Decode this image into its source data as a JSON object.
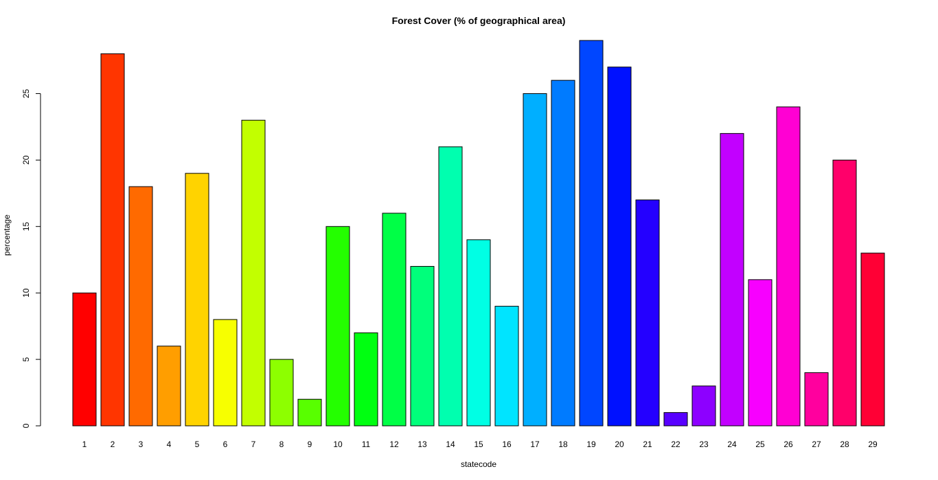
{
  "chart_data": {
    "type": "bar",
    "title": "Forest Cover (% of geographical area)",
    "xlabel": "statecode",
    "ylabel": "percentage",
    "categories": [
      "1",
      "2",
      "3",
      "4",
      "5",
      "6",
      "7",
      "8",
      "9",
      "10",
      "11",
      "12",
      "13",
      "14",
      "15",
      "16",
      "17",
      "18",
      "19",
      "20",
      "21",
      "22",
      "23",
      "24",
      "25",
      "26",
      "27",
      "28",
      "29"
    ],
    "values": [
      10,
      28,
      18,
      6,
      19,
      8,
      23,
      5,
      2,
      15,
      7,
      16,
      12,
      21,
      14,
      9,
      25,
      26,
      29,
      27,
      17,
      1,
      3,
      22,
      11,
      24,
      4,
      20,
      13
    ],
    "colors": [
      "#FF0000",
      "#FF3500",
      "#FF6A00",
      "#FF9E00",
      "#FFD300",
      "#F7FF00",
      "#C2FF00",
      "#8DFF00",
      "#58FF00",
      "#24FF00",
      "#00FF11",
      "#00FF46",
      "#00FF7B",
      "#00FFAF",
      "#00FFE4",
      "#00E4FF",
      "#00AFFF",
      "#007BFF",
      "#0046FF",
      "#0011FF",
      "#2400FF",
      "#5800FF",
      "#8D00FF",
      "#C200FF",
      "#F700FF",
      "#FF00D3",
      "#FF009E",
      "#FF006A",
      "#FF0035"
    ],
    "yticks": [
      0,
      5,
      10,
      15,
      20,
      25
    ],
    "ylim": [
      0,
      29
    ],
    "grid": false,
    "legend": "none"
  }
}
